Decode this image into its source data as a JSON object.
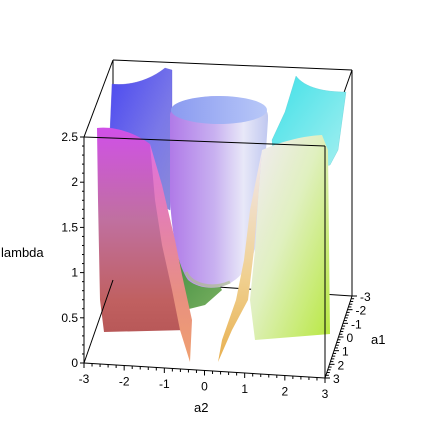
{
  "chart_data": {
    "type": "surface3d",
    "title": "",
    "xlabel": "a2",
    "ylabel": "a1",
    "zlabel": "lambda",
    "x_ticks": [
      "-3",
      "-2",
      "-1",
      "0",
      "1",
      "2",
      "3"
    ],
    "y_ticks": [
      "-3",
      "-2",
      "-1",
      "0",
      "1",
      "2",
      "3"
    ],
    "z_ticks": [
      "0",
      "0.5",
      "1",
      "1.5",
      "2",
      "2.5"
    ],
    "xlim": [
      -3,
      3
    ],
    "ylim": [
      -3,
      3
    ],
    "zlim": [
      0,
      2.5
    ],
    "box": true,
    "coloring": "xyz",
    "surface_patches": [
      {
        "name": "back-left sheet",
        "color": "#6a64f0"
      },
      {
        "name": "back-right sheet",
        "color": "#5fe8e8"
      },
      {
        "name": "central column",
        "color": "#c8a6f0"
      },
      {
        "name": "front-left sheet",
        "color": "#d060d8"
      },
      {
        "name": "front-right sheet",
        "color": "#cfe890"
      },
      {
        "name": "center floor",
        "color": "#58a050"
      }
    ]
  }
}
